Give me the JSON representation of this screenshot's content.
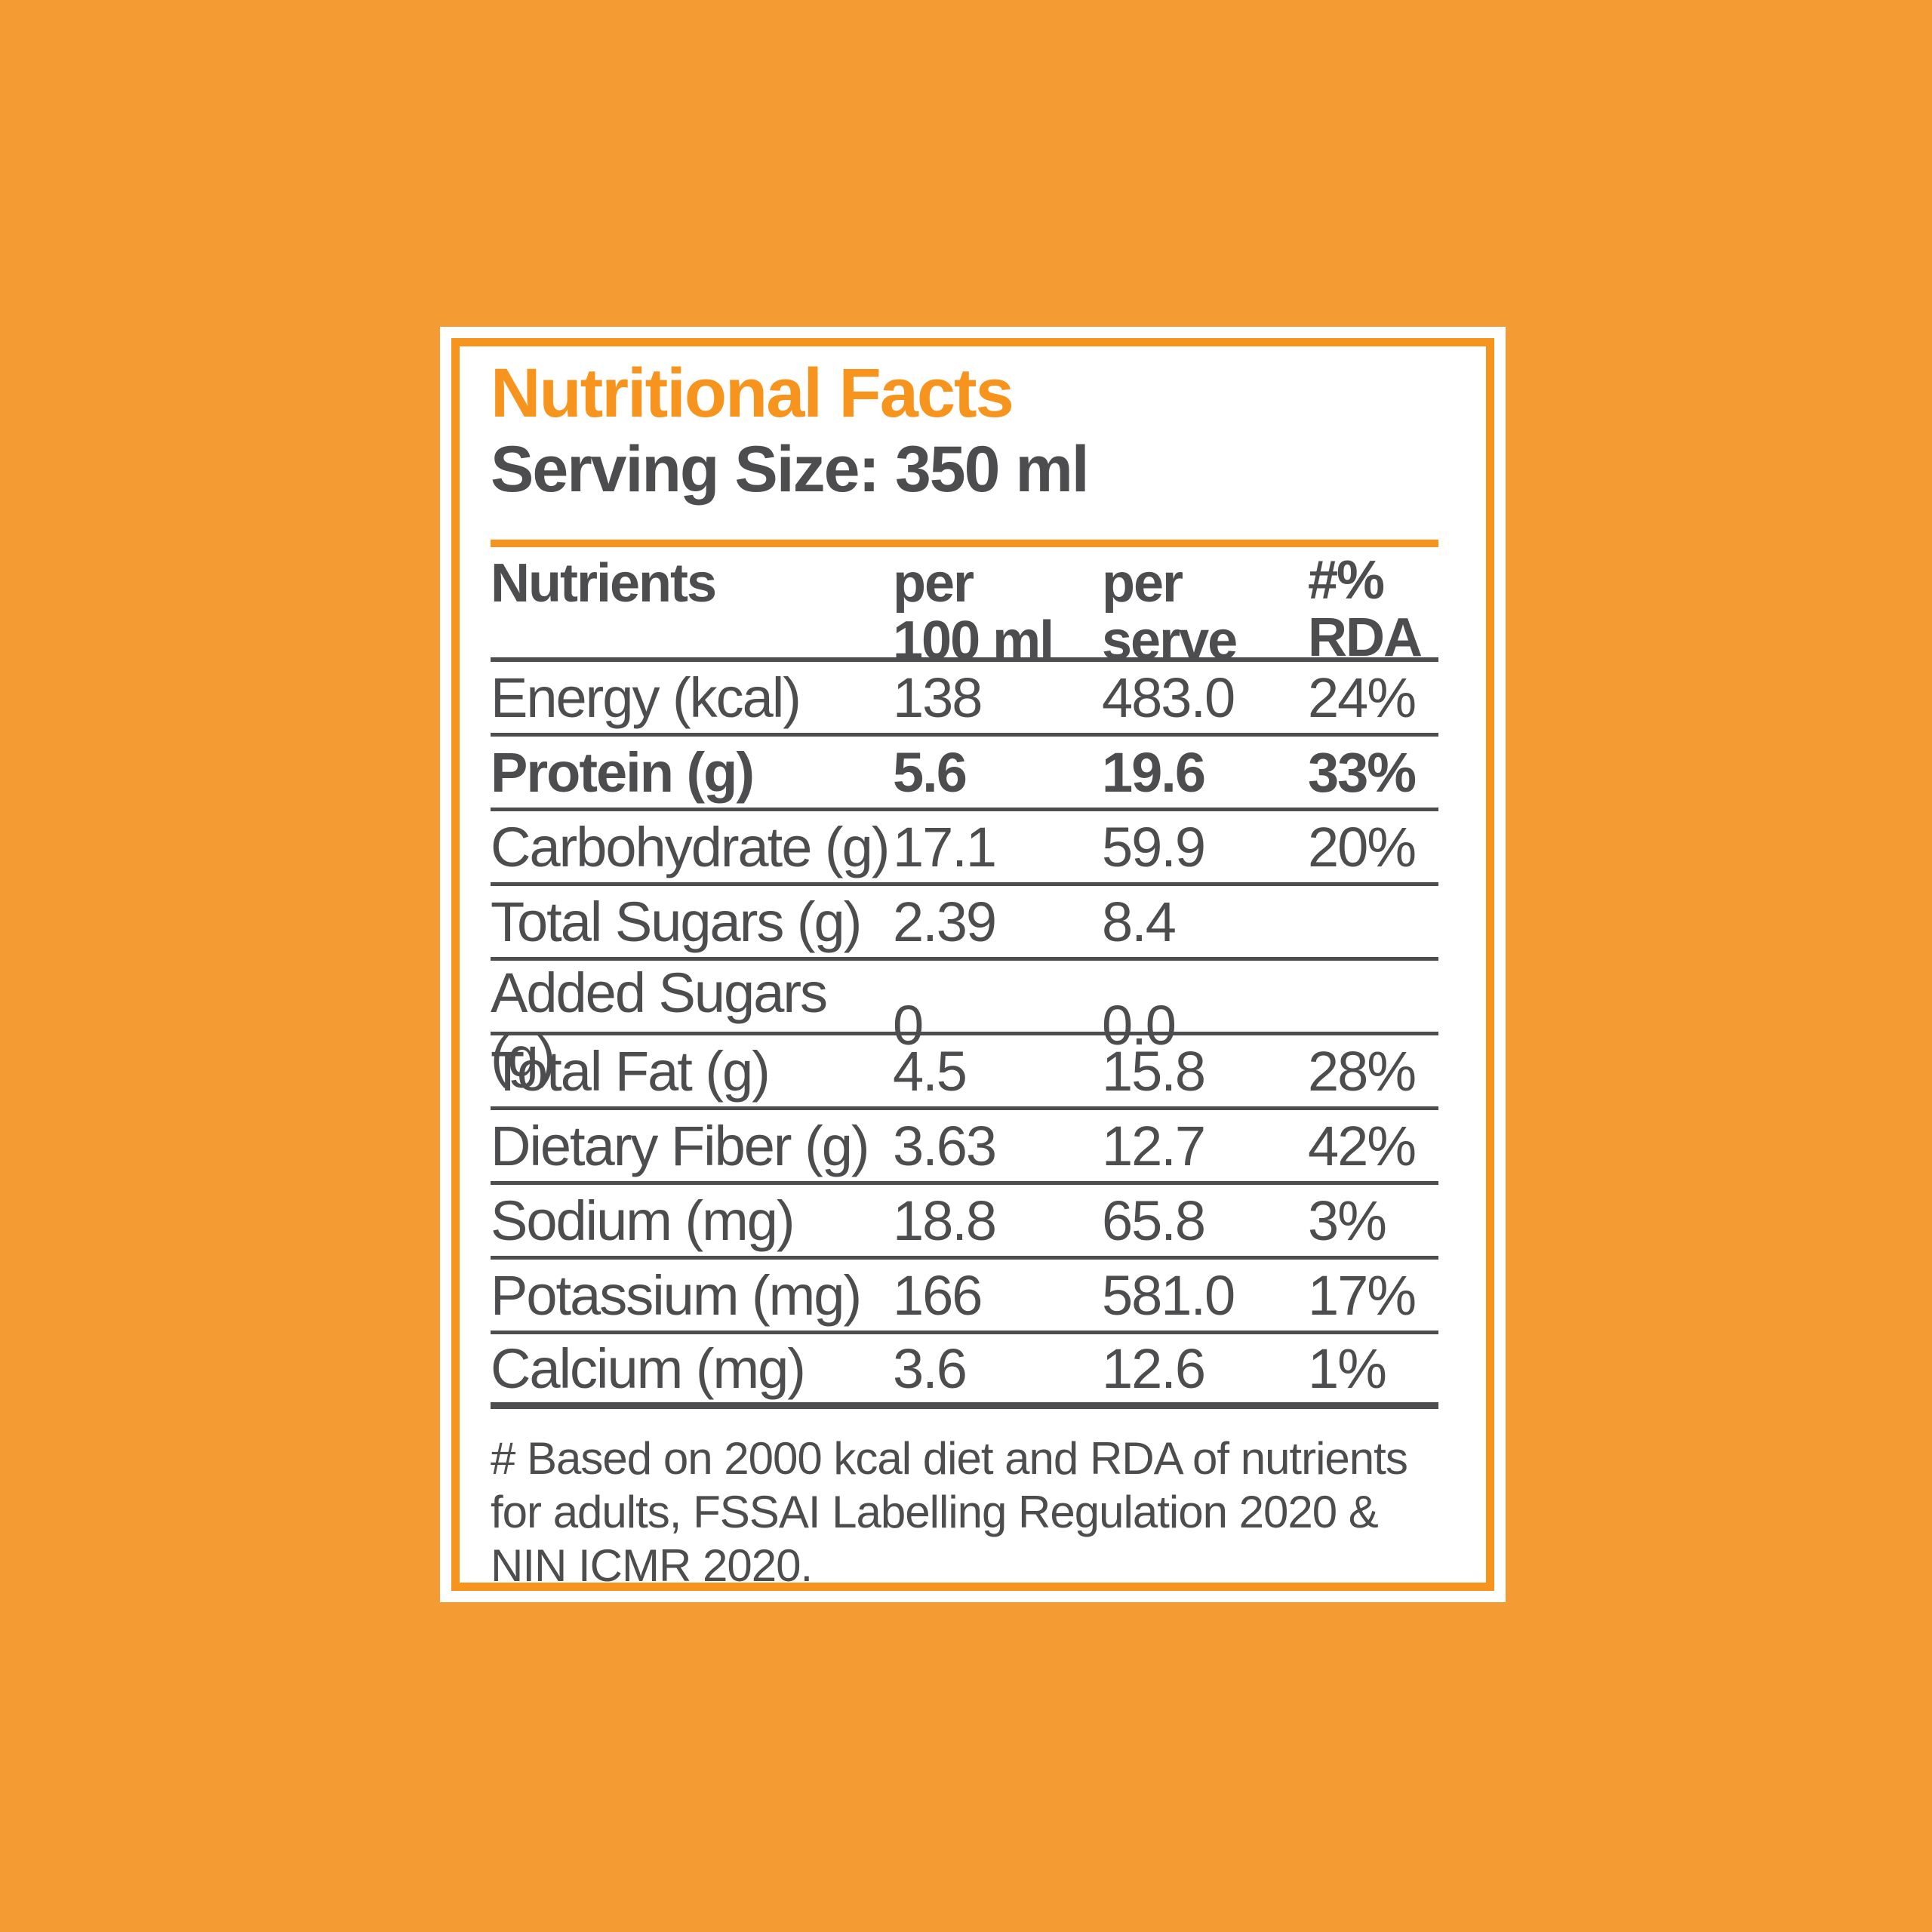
{
  "page": {
    "background_color": "#F49B33"
  },
  "label_card": {
    "accent_color": "#F7941E",
    "text_color": "#4D4D4F",
    "title": "Nutritional Facts",
    "serving_size": "Serving Size: 350 ml",
    "table": {
      "header": {
        "nutrients": "Nutrients",
        "per_100ml": "per\n100 ml",
        "per_serve": "per\nserve",
        "rda": "#% RDA"
      },
      "rows": [
        {
          "label": "Energy (kcal)",
          "per_100ml": "138",
          "per_serve": "483.0",
          "rda": "24%",
          "bold": false
        },
        {
          "label": "Protein (g)",
          "per_100ml": "5.6",
          "per_serve": "19.6",
          "rda": "33%",
          "bold": true
        },
        {
          "label": "Carbohydrate (g)",
          "per_100ml": "17.1",
          "per_serve": "59.9",
          "rda": "20%",
          "bold": false
        },
        {
          "label": "Total Sugars (g)",
          "per_100ml": "2.39",
          "per_serve": "8.4",
          "rda": "",
          "bold": false
        },
        {
          "label": "Added Sugars (g)",
          "per_100ml": "0",
          "per_serve": "0.0",
          "rda": "",
          "bold": false
        },
        {
          "label": "Total Fat (g)",
          "per_100ml": "4.5",
          "per_serve": "15.8",
          "rda": "28%",
          "bold": false
        },
        {
          "label": "Dietary Fiber (g)",
          "per_100ml": "3.63",
          "per_serve": "12.7",
          "rda": "42%",
          "bold": false
        },
        {
          "label": "Sodium (mg)",
          "per_100ml": "18.8",
          "per_serve": "65.8",
          "rda": "3%",
          "bold": false
        },
        {
          "label": "Potassium (mg)",
          "per_100ml": "166",
          "per_serve": "581.0",
          "rda": "17%",
          "bold": false
        },
        {
          "label": "Calcium (mg)",
          "per_100ml": "3.6",
          "per_serve": "12.6",
          "rda": "1%",
          "bold": false
        }
      ]
    },
    "footnote": "# Based on 2000 kcal diet and RDA of nutrients for adults, FSSAI Labelling Regulation 2020 & NIN ICMR 2020."
  }
}
